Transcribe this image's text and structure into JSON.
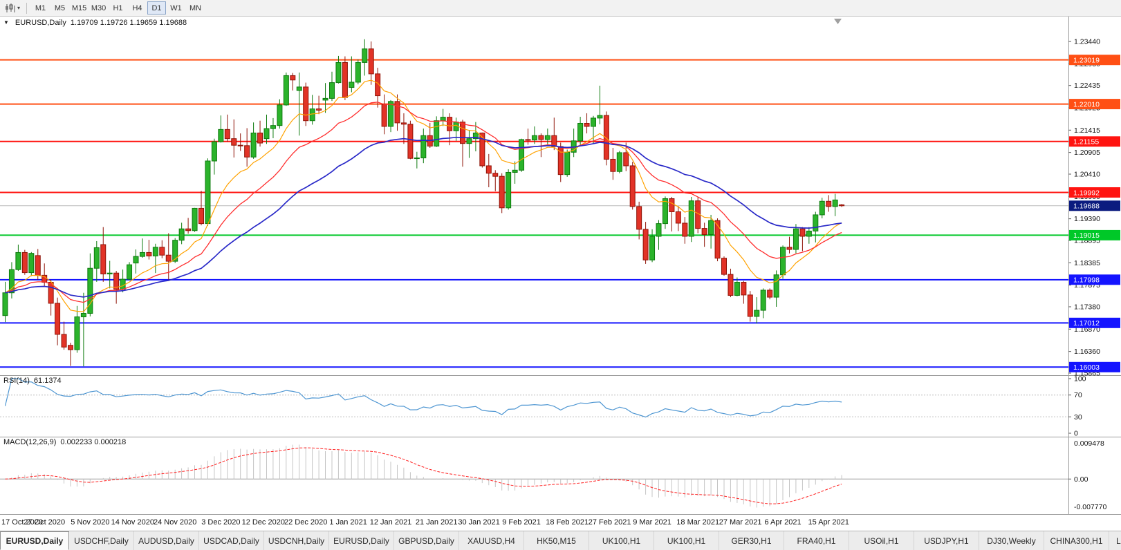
{
  "toolbar": {
    "timeframes": [
      "M1",
      "M5",
      "M15",
      "M30",
      "H1",
      "H4",
      "D1",
      "W1",
      "MN"
    ],
    "active_timeframe": "D1"
  },
  "chart_header": {
    "collapse_icon": "▼",
    "symbol_period": "EURUSD,Daily",
    "ohlc_text": "1.19709 1.19726 1.19659 1.19688"
  },
  "shift_marker_color": "#a0a0a0",
  "chart_data": {
    "type": "candlestick",
    "symbol": "EURUSD",
    "period": "Daily",
    "current_ohlc": {
      "open": 1.19709,
      "high": 1.19726,
      "low": 1.19659,
      "close": 1.19688
    },
    "price_axis": {
      "labels": [
        "1.23440",
        "1.22930",
        "1.22435",
        "1.21925",
        "1.21415",
        "1.20905",
        "1.20410",
        "1.19900",
        "1.19390",
        "1.18895",
        "1.18385",
        "1.17875",
        "1.17380",
        "1.16870",
        "1.16360",
        "1.15865"
      ]
    },
    "x_axis_labels": [
      {
        "text": "17 Oct 2020",
        "index": 0
      },
      {
        "text": "27 Oct 2020",
        "index": 6
      },
      {
        "text": "5 Nov 2020",
        "index": 13
      },
      {
        "text": "14 Nov 2020",
        "index": 19.5
      },
      {
        "text": "24 Nov 2020",
        "index": 26
      },
      {
        "text": "3 Dec 2020",
        "index": 33
      },
      {
        "text": "12 Dec 2020",
        "index": 39.5
      },
      {
        "text": "22 Dec 2020",
        "index": 46
      },
      {
        "text": "1 Jan 2021",
        "index": 52.5
      },
      {
        "text": "12 Jan 2021",
        "index": 59
      },
      {
        "text": "21 Jan 2021",
        "index": 66
      },
      {
        "text": "30 Jan 2021",
        "index": 72.5
      },
      {
        "text": "9 Feb 2021",
        "index": 79
      },
      {
        "text": "18 Feb 2021",
        "index": 86
      },
      {
        "text": "27 Feb 2021",
        "index": 92.5
      },
      {
        "text": "9 Mar 2021",
        "index": 99
      },
      {
        "text": "18 Mar 2021",
        "index": 106
      },
      {
        "text": "27 Mar 2021",
        "index": 112.5
      },
      {
        "text": "6 Apr 2021",
        "index": 119
      },
      {
        "text": "15 Apr 2021",
        "index": 126
      }
    ],
    "candles": [
      [
        1.1718,
        1.1795,
        1.1703,
        1.177
      ],
      [
        1.177,
        1.184,
        1.1757,
        1.1823
      ],
      [
        1.1823,
        1.188,
        1.182,
        1.1862
      ],
      [
        1.1862,
        1.1868,
        1.1811,
        1.1816
      ],
      [
        1.1816,
        1.1863,
        1.1808,
        1.186
      ],
      [
        1.1855,
        1.187,
        1.18,
        1.181
      ],
      [
        1.181,
        1.1837,
        1.1783,
        1.1794
      ],
      [
        1.1794,
        1.18,
        1.1718,
        1.1746
      ],
      [
        1.1746,
        1.1759,
        1.165,
        1.1675
      ],
      [
        1.1675,
        1.1704,
        1.164,
        1.1646
      ],
      [
        1.165,
        1.1656,
        1.1603,
        1.164
      ],
      [
        1.164,
        1.174,
        1.1633,
        1.1715
      ],
      [
        1.1715,
        1.177,
        1.1602,
        1.1723
      ],
      [
        1.1723,
        1.186,
        1.1716,
        1.1826
      ],
      [
        1.1826,
        1.1888,
        1.1795,
        1.1873
      ],
      [
        1.188,
        1.192,
        1.1795,
        1.1813
      ],
      [
        1.1813,
        1.1843,
        1.178,
        1.1815
      ],
      [
        1.1815,
        1.182,
        1.1745,
        1.1778
      ],
      [
        1.1778,
        1.1823,
        1.1771,
        1.1801
      ],
      [
        1.1801,
        1.184,
        1.1799,
        1.1834
      ],
      [
        1.1838,
        1.1869,
        1.1814,
        1.1853
      ],
      [
        1.1853,
        1.1894,
        1.185,
        1.1862
      ],
      [
        1.1862,
        1.1891,
        1.1846,
        1.1854
      ],
      [
        1.1854,
        1.1882,
        1.1815,
        1.1874
      ],
      [
        1.1874,
        1.189,
        1.1849,
        1.1856
      ],
      [
        1.1856,
        1.1906,
        1.18,
        1.1842
      ],
      [
        1.1842,
        1.1895,
        1.1838,
        1.189
      ],
      [
        1.189,
        1.193,
        1.1881,
        1.1916
      ],
      [
        1.1916,
        1.1941,
        1.1905,
        1.1912
      ],
      [
        1.1912,
        1.1964,
        1.1909,
        1.1963
      ],
      [
        1.1963,
        1.2003,
        1.1924,
        1.1928
      ],
      [
        1.1928,
        1.2077,
        1.1923,
        1.2071
      ],
      [
        1.2071,
        1.2122,
        1.204,
        1.2115
      ],
      [
        1.2115,
        1.2175,
        1.2113,
        1.2143
      ],
      [
        1.2143,
        1.2177,
        1.2115,
        1.2122
      ],
      [
        1.2122,
        1.2166,
        1.2079,
        1.2107
      ],
      [
        1.2107,
        1.2134,
        1.2094,
        1.2106
      ],
      [
        1.2106,
        1.2146,
        1.2058,
        1.208
      ],
      [
        1.208,
        1.2159,
        1.2076,
        1.2135
      ],
      [
        1.2135,
        1.2163,
        1.2104,
        1.2112
      ],
      [
        1.2122,
        1.2177,
        1.211,
        1.2145
      ],
      [
        1.2145,
        1.2169,
        1.2123,
        1.2152
      ],
      [
        1.2152,
        1.2212,
        1.2145,
        1.2199
      ],
      [
        1.2199,
        1.2273,
        1.2197,
        1.2266
      ],
      [
        1.2266,
        1.2272,
        1.2232,
        1.2256
      ],
      [
        1.2232,
        1.2273,
        1.2129,
        1.224
      ],
      [
        1.224,
        1.225,
        1.2151,
        1.2163
      ],
      [
        1.2163,
        1.2222,
        1.2154,
        1.219
      ],
      [
        1.219,
        1.222,
        1.2178,
        1.2187
      ],
      [
        1.221,
        1.2249,
        1.2181,
        1.2214
      ],
      [
        1.2214,
        1.2275,
        1.2208,
        1.225
      ],
      [
        1.225,
        1.2311,
        1.2248,
        1.2296
      ],
      [
        1.2296,
        1.231,
        1.221,
        1.2216
      ],
      [
        1.2239,
        1.231,
        1.2228,
        1.2251
      ],
      [
        1.2251,
        1.2303,
        1.2246,
        1.2296
      ],
      [
        1.2296,
        1.2349,
        1.2266,
        1.2327
      ],
      [
        1.2327,
        1.2344,
        1.2245,
        1.227
      ],
      [
        1.227,
        1.2284,
        1.2193,
        1.222
      ],
      [
        1.22,
        1.2223,
        1.2132,
        1.215
      ],
      [
        1.215,
        1.221,
        1.2137,
        1.2207
      ],
      [
        1.2207,
        1.2223,
        1.214,
        1.2158
      ],
      [
        1.2158,
        1.218,
        1.211,
        1.2155
      ],
      [
        1.2155,
        1.2163,
        1.2075,
        1.2077
      ],
      [
        1.2077,
        1.2092,
        1.2054,
        1.2078
      ],
      [
        1.2078,
        1.2145,
        1.2066,
        1.2129
      ],
      [
        1.2129,
        1.2158,
        1.2101,
        1.2105
      ],
      [
        1.2105,
        1.2173,
        1.2103,
        1.2163
      ],
      [
        1.2163,
        1.219,
        1.2151,
        1.2171
      ],
      [
        1.2171,
        1.218,
        1.2107,
        1.214
      ],
      [
        1.214,
        1.217,
        1.2117,
        1.216
      ],
      [
        1.216,
        1.2165,
        1.2058,
        1.2111
      ],
      [
        1.2111,
        1.2142,
        1.2078,
        1.2122
      ],
      [
        1.2122,
        1.216,
        1.2093,
        1.2135
      ],
      [
        1.2135,
        1.2136,
        1.2056,
        1.206
      ],
      [
        1.206,
        1.2087,
        1.2011,
        1.2043
      ],
      [
        1.2043,
        1.205,
        1.2002,
        1.2036
      ],
      [
        1.2036,
        1.2043,
        1.1952,
        1.1964
      ],
      [
        1.1964,
        1.2052,
        1.196,
        1.2045
      ],
      [
        1.2045,
        1.207,
        1.2019,
        1.205
      ],
      [
        1.205,
        1.2122,
        1.2046,
        1.212
      ],
      [
        1.212,
        1.2145,
        1.2108,
        1.2119
      ],
      [
        1.2119,
        1.215,
        1.211,
        1.2129
      ],
      [
        1.2129,
        1.2134,
        1.208,
        1.212
      ],
      [
        1.212,
        1.2145,
        1.2109,
        1.2129
      ],
      [
        1.2129,
        1.217,
        1.2096,
        1.2104
      ],
      [
        1.2104,
        1.2113,
        1.2023,
        1.204
      ],
      [
        1.204,
        1.2097,
        1.2035,
        1.2091
      ],
      [
        1.2091,
        1.2145,
        1.208,
        1.2117
      ],
      [
        1.2117,
        1.2172,
        1.2105,
        1.2157
      ],
      [
        1.2157,
        1.218,
        1.2134,
        1.215
      ],
      [
        1.215,
        1.2174,
        1.211,
        1.2169
      ],
      [
        1.2169,
        1.2243,
        1.2155,
        1.2175
      ],
      [
        1.2175,
        1.2184,
        1.2061,
        1.2075
      ],
      [
        1.2075,
        1.2101,
        1.2028,
        1.2047
      ],
      [
        1.2047,
        1.2094,
        1.2043,
        1.209
      ],
      [
        1.209,
        1.2113,
        1.2048,
        1.206
      ],
      [
        1.206,
        1.2069,
        1.196,
        1.1967
      ],
      [
        1.1967,
        1.1978,
        1.1892,
        1.1915
      ],
      [
        1.1915,
        1.1932,
        1.1836,
        1.1845
      ],
      [
        1.1845,
        1.1915,
        1.184,
        1.1899
      ],
      [
        1.1899,
        1.1936,
        1.1868,
        1.1928
      ],
      [
        1.1928,
        1.199,
        1.1916,
        1.1985
      ],
      [
        1.1985,
        1.1989,
        1.191,
        1.1955
      ],
      [
        1.1955,
        1.1968,
        1.1911,
        1.1929
      ],
      [
        1.1929,
        1.1943,
        1.1882,
        1.1899
      ],
      [
        1.1899,
        1.1989,
        1.1886,
        1.198
      ],
      [
        1.198,
        1.1988,
        1.1906,
        1.1917
      ],
      [
        1.1917,
        1.193,
        1.1875,
        1.1903
      ],
      [
        1.1903,
        1.1948,
        1.1871,
        1.1935
      ],
      [
        1.1935,
        1.194,
        1.1842,
        1.1849
      ],
      [
        1.1849,
        1.1853,
        1.1809,
        1.1812
      ],
      [
        1.1812,
        1.1825,
        1.176,
        1.1764
      ],
      [
        1.1764,
        1.1805,
        1.1762,
        1.1794
      ],
      [
        1.1794,
        1.1797,
        1.1745,
        1.1765
      ],
      [
        1.1765,
        1.1774,
        1.1704,
        1.1716
      ],
      [
        1.1716,
        1.176,
        1.17,
        1.173
      ],
      [
        1.173,
        1.178,
        1.1712,
        1.1776
      ],
      [
        1.1776,
        1.178,
        1.1755,
        1.176
      ],
      [
        1.176,
        1.1821,
        1.1738,
        1.1811
      ],
      [
        1.1811,
        1.1878,
        1.1802,
        1.1874
      ],
      [
        1.1874,
        1.1898,
        1.186,
        1.1869
      ],
      [
        1.1869,
        1.1927,
        1.186,
        1.1916
      ],
      [
        1.1916,
        1.192,
        1.1865,
        1.1899
      ],
      [
        1.1899,
        1.192,
        1.1882,
        1.1911
      ],
      [
        1.1911,
        1.1955,
        1.1885,
        1.1948
      ],
      [
        1.1948,
        1.1987,
        1.194,
        1.1979
      ],
      [
        1.1979,
        1.1993,
        1.1955,
        1.1967
      ],
      [
        1.1967,
        1.1996,
        1.1945,
        1.1982
      ],
      [
        1.19709,
        1.19726,
        1.19659,
        1.19688
      ]
    ],
    "candle_colors": {
      "bull_fill": "#2bb32b",
      "bull_stroke": "#0e7a0e",
      "bear_fill": "#e23327",
      "bear_stroke": "#8f1408"
    },
    "moving_averages": [
      {
        "name": "ma-fast",
        "type": "EMA",
        "period": 10,
        "color": "#ffa200"
      },
      {
        "name": "ma-medium",
        "type": "EMA",
        "period": 20,
        "color": "#ff2e2e"
      },
      {
        "name": "ma-slow",
        "type": "EMA",
        "period": 40,
        "color": "#2929c8"
      }
    ],
    "horizontal_levels": [
      {
        "label": "1.23019",
        "price": 1.23019,
        "color": "#ff4f14"
      },
      {
        "label": "1.22010",
        "price": 1.2201,
        "color": "#ff4f14"
      },
      {
        "label": "1.21155",
        "price": 1.21155,
        "color": "#ff1410"
      },
      {
        "label": "1.19992",
        "price": 1.19992,
        "color": "#ff1410"
      },
      {
        "label": "1.19015",
        "price": 1.19015,
        "color": "#00c828"
      },
      {
        "label": "1.17998",
        "price": 1.17998,
        "color": "#1414ff"
      },
      {
        "label": "1.17012",
        "price": 1.17012,
        "color": "#1414ff"
      },
      {
        "label": "1.16003",
        "price": 1.16003,
        "color": "#1414ff"
      }
    ],
    "current_price": {
      "label": "1.19688",
      "price": 1.19688,
      "badge_color": "#0b1b7f",
      "line_color": "#b8b8b8"
    },
    "indicators": {
      "rsi": {
        "label_name": "RSI(14)",
        "label_value": "61.1374",
        "period": 14,
        "scale_labels": [
          "100",
          "70",
          "30",
          "0"
        ],
        "upper_level": 70,
        "lower_level": 30,
        "line_color": "#4e96d2"
      },
      "macd": {
        "label_name": "MACD(12,26,9)",
        "label_values": "0.002233 0.000218",
        "fast": 12,
        "slow": 26,
        "signal": 9,
        "scale_top_label": "0.009478",
        "scale_zero_label": "0.00",
        "scale_bottom_label": "-0.007770",
        "histogram_color": "#c4c4c4",
        "signal_color": "#ff2020"
      }
    }
  },
  "tab_bar": {
    "tabs": [
      "EURUSD,Daily",
      "USDCHF,Daily",
      "AUDUSD,Daily",
      "USDCAD,Daily",
      "USDCNH,Daily",
      "EURUSD,Daily",
      "GBPUSD,Daily",
      "XAUUSD,H4",
      "HK50,M15",
      "UK100,H1",
      "UK100,H1",
      "GER30,H1",
      "FRA40,H1",
      "USOil,H1",
      "USDJPY,H1",
      "DJ30,Weekly",
      "CHINA300,H1",
      "L"
    ],
    "active_index": 0
  }
}
